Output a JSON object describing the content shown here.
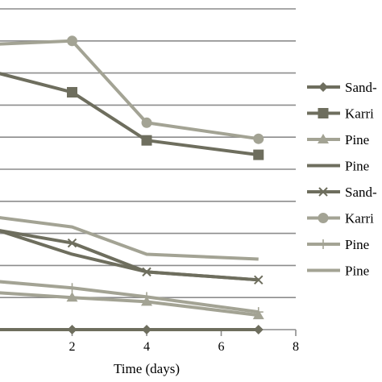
{
  "chart_data": {
    "type": "line",
    "xlabel": "Time (days)",
    "ylabel": "",
    "xlim": [
      0,
      8
    ],
    "ylim": [
      0,
      10
    ],
    "x_ticks": [
      2,
      4,
      6,
      8
    ],
    "grid": true,
    "legend_position": "right",
    "series": [
      {
        "name": "Sand-",
        "marker": "diamond",
        "color": "#6e6e5e",
        "x": [
          0,
          2,
          4,
          7
        ],
        "y": [
          0,
          0,
          0,
          0
        ]
      },
      {
        "name": "Karri",
        "marker": "square",
        "color": "#6e6e5e",
        "x": [
          0,
          2,
          4,
          7
        ],
        "y": [
          8.0,
          7.4,
          5.9,
          5.45
        ]
      },
      {
        "name": "Pine",
        "marker": "triangle",
        "color": "#a3a394",
        "x": [
          0,
          2,
          4,
          7
        ],
        "y": [
          1.15,
          1.0,
          0.87,
          0.45
        ]
      },
      {
        "name": "Pine",
        "marker": "none",
        "color": "#6e6e5e",
        "x": [
          0,
          2,
          4,
          7
        ],
        "y": [
          3.1,
          2.35,
          1.8,
          1.55
        ]
      },
      {
        "name": "Sand-",
        "marker": "x",
        "color": "#6e6e5e",
        "x": [
          0,
          2,
          4,
          7
        ],
        "y": [
          3.1,
          2.7,
          1.8,
          1.55
        ]
      },
      {
        "name": "Karri",
        "marker": "circle",
        "color": "#a3a394",
        "x": [
          0,
          2,
          4,
          7
        ],
        "y": [
          8.9,
          9.0,
          6.45,
          5.95
        ]
      },
      {
        "name": "Pine",
        "marker": "plus",
        "color": "#a3a394",
        "x": [
          0,
          2,
          4,
          7
        ],
        "y": [
          1.5,
          1.3,
          1.02,
          0.55
        ]
      },
      {
        "name": "Pine",
        "marker": "none",
        "color": "#a3a394",
        "x": [
          0,
          2,
          4,
          7
        ],
        "y": [
          3.5,
          3.2,
          2.35,
          2.2
        ]
      }
    ]
  }
}
